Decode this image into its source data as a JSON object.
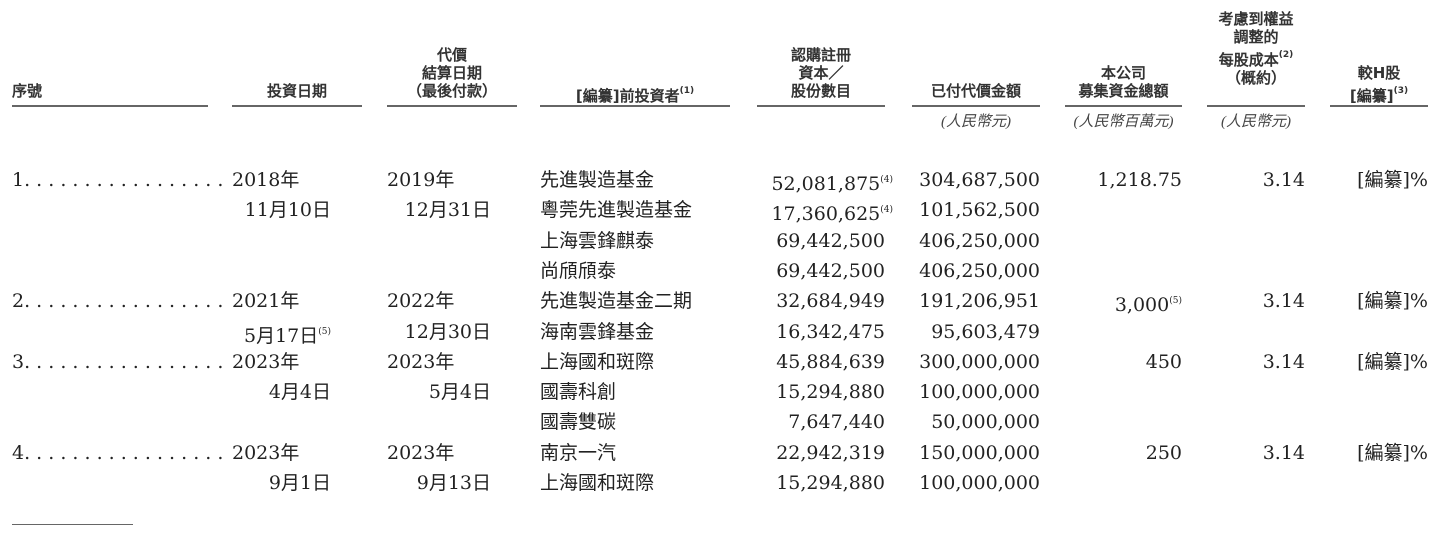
{
  "headers": {
    "no": "序號",
    "invest_date": "投資日期",
    "settle_date": [
      "代價",
      "結算日期",
      "（最後付款）"
    ],
    "investor": "[編纂]前投資者",
    "investor_note": "(1)",
    "shares": [
      "認購註冊",
      "資本／",
      "股份數目"
    ],
    "consideration": "已付代價金額",
    "proceeds": [
      "本公司",
      "募集資金總額"
    ],
    "cost": [
      "考慮到權益",
      "調整的",
      "每股成本",
      "（概約）"
    ],
    "cost_note": "(2)",
    "premium": [
      "較H股",
      "[編纂]"
    ],
    "premium_note": "(3)"
  },
  "units": {
    "consideration": "(人民幣元)",
    "proceeds": "(人民幣百萬元)",
    "cost": "(人民幣元)"
  },
  "groups": [
    {
      "no": "1. . . . . . . . . . . . . . . . .",
      "invest_year": "2018年",
      "invest_md": "11月10日",
      "invest_note": "",
      "settle_year": "2019年",
      "settle_md": "12月31日",
      "proceeds": "1,218.75",
      "proceeds_note": "",
      "cost": "3.14",
      "premium": "[編纂]%",
      "investors": [
        {
          "name": "先進製造基金",
          "shares": "52,081,875",
          "note": "(4)",
          "paid": "304,687,500"
        },
        {
          "name": "粵莞先進製造基金",
          "shares": "17,360,625",
          "note": "(4)",
          "paid": "101,562,500"
        },
        {
          "name": "上海雲鋒麒泰",
          "shares": "69,442,500",
          "note": "",
          "paid": "406,250,000"
        },
        {
          "name": "尚頎頎泰",
          "shares": "69,442,500",
          "note": "",
          "paid": "406,250,000"
        }
      ]
    },
    {
      "no": "2. . . . . . . . . . . . . . . . .",
      "invest_year": "2021年",
      "invest_md": "5月17日",
      "invest_note": "(5)",
      "settle_year": "2022年",
      "settle_md": "12月30日",
      "proceeds": "3,000",
      "proceeds_note": "(5)",
      "cost": "3.14",
      "premium": "[編纂]%",
      "investors": [
        {
          "name": "先進製造基金二期",
          "shares": "32,684,949",
          "note": "",
          "paid": "191,206,951"
        },
        {
          "name": "海南雲鋒基金",
          "shares": "16,342,475",
          "note": "",
          "paid": "95,603,479"
        }
      ]
    },
    {
      "no": "3. . . . . . . . . . . . . . . . .",
      "invest_year": "2023年",
      "invest_md": "4月4日",
      "invest_note": "",
      "settle_year": "2023年",
      "settle_md": "5月4日",
      "proceeds": "450",
      "proceeds_note": "",
      "cost": "3.14",
      "premium": "[編纂]%",
      "investors": [
        {
          "name": "上海國和斑際",
          "shares": "45,884,639",
          "note": "",
          "paid": "300,000,000"
        },
        {
          "name": "國壽科創",
          "shares": "15,294,880",
          "note": "",
          "paid": "100,000,000"
        },
        {
          "name": "國壽雙碳",
          "shares": "7,647,440",
          "note": "",
          "paid": "50,000,000"
        }
      ]
    },
    {
      "no": "4. . . . . . . . . . . . . . . . .",
      "invest_year": "2023年",
      "invest_md": "9月1日",
      "invest_note": "",
      "settle_year": "2023年",
      "settle_md": "9月13日",
      "proceeds": "250",
      "proceeds_note": "",
      "cost": "3.14",
      "premium": "[編纂]%",
      "investors": [
        {
          "name": "南京一汽",
          "shares": "22,942,319",
          "note": "",
          "paid": "150,000,000"
        },
        {
          "name": "上海國和斑際",
          "shares": "15,294,880",
          "note": "",
          "paid": "100,000,000"
        }
      ]
    }
  ]
}
